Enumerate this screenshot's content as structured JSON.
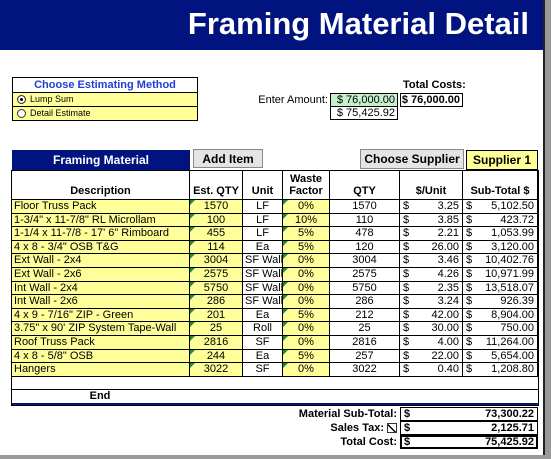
{
  "header": {
    "title": "Framing Material Detail"
  },
  "estimating_method": {
    "title": "Choose Estimating Method",
    "options": [
      "Lump Sum",
      "Detail Estimate"
    ],
    "selected_index": 0
  },
  "enter_amount": {
    "label": "Enter Amount:",
    "value": "$ 76,000.00",
    "computed": "$ 75,425.92"
  },
  "total_costs": {
    "label": "Total Costs:",
    "value": "$ 76,000.00"
  },
  "toolbar": {
    "section_title": "Framing Material",
    "add_button": "Add Item",
    "supplier_button": "Choose Supplier",
    "supplier": "Supplier 1"
  },
  "table": {
    "columns": [
      "Description",
      "Est. QTY",
      "Unit",
      "Waste Factor",
      "QTY",
      "$/Unit",
      "Sub-Total $"
    ],
    "currency": "$",
    "rows": [
      [
        "Floor Truss Pack",
        "1570",
        "LF",
        "0%",
        "1570",
        "3.25",
        "5,102.50"
      ],
      [
        "1-3/4\" x 11-7/8\"  RL Microllam",
        "100",
        "LF",
        "10%",
        "110",
        "3.85",
        "423.72"
      ],
      [
        "1-1/4 x 11-7/8 - 17' 6\" Rimboard",
        "455",
        "LF",
        "5%",
        "478",
        "2.21",
        "1,053.99"
      ],
      [
        "4 x 8 - 3/4\" OSB T&G",
        "114",
        "Ea",
        "5%",
        "120",
        "26.00",
        "3,120.00"
      ],
      [
        "Ext Wall - 2x4",
        "3004",
        "SF Wall",
        "0%",
        "3004",
        "3.46",
        "10,402.76"
      ],
      [
        "Ext Wall - 2x6",
        "2575",
        "SF Wall",
        "0%",
        "2575",
        "4.26",
        "10,971.99"
      ],
      [
        "Int Wall - 2x4",
        "5750",
        "SF Wall",
        "0%",
        "5750",
        "2.35",
        "13,518.07"
      ],
      [
        "Int Wall - 2x6",
        "286",
        "SF Wall",
        "0%",
        "286",
        "3.24",
        "926.39"
      ],
      [
        "4 x 9 - 7/16\" ZIP - Green",
        "201",
        "Ea",
        "5%",
        "212",
        "42.00",
        "8,904.00"
      ],
      [
        "3.75\" x 90' ZIP System Tape-Wall",
        "25",
        "Roll",
        "0%",
        "25",
        "30.00",
        "750.00"
      ],
      [
        "Roof Truss Pack",
        "2816",
        "SF",
        "0%",
        "2816",
        "4.00",
        "11,264.00"
      ],
      [
        "4 x 8 - 5/8\" OSB",
        "244",
        "Ea",
        "5%",
        "257",
        "22.00",
        "5,654.00"
      ],
      [
        "Hangers",
        "3022",
        "SF",
        "0%",
        "3022",
        "0.40",
        "1,208.80"
      ]
    ],
    "end_label": "End"
  },
  "summary": {
    "rows": [
      {
        "label": "Material Sub-Total:",
        "value": "73,300.22"
      },
      {
        "label": "Sales Tax:",
        "value": "2,125.71",
        "checked": true
      },
      {
        "label": "Total Cost:",
        "value": "75,425.92"
      }
    ]
  }
}
